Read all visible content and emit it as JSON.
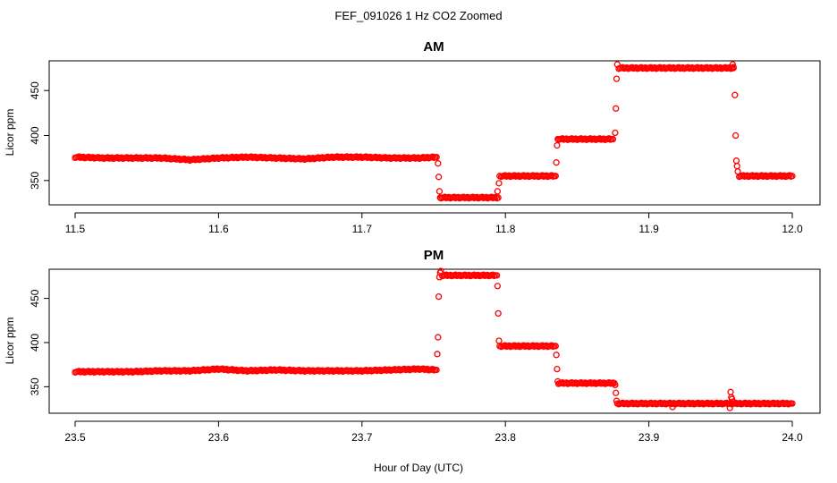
{
  "figure": {
    "title": "FEF_091026  1 Hz CO2 Zoomed",
    "xlabel": "Hour of Day (UTC)"
  },
  "chart_data": [
    {
      "type": "scatter",
      "title": "AM",
      "xlabel": "",
      "ylabel": "Licor ppm",
      "xlim": [
        11.5,
        12.0
      ],
      "ylim": [
        323,
        483
      ],
      "xticks": [
        "11.5",
        "11.6",
        "11.7",
        "11.8",
        "11.9",
        "12.0"
      ],
      "yticks": [
        "350",
        "400",
        "450"
      ],
      "marker": "open-circle",
      "color": "#ff0000",
      "segments": [
        {
          "x": [
            11.5,
            11.52,
            11.54,
            11.56,
            11.58,
            11.6,
            11.62,
            11.64,
            11.66,
            11.68,
            11.7,
            11.72,
            11.74,
            11.752
          ],
          "y": [
            376,
            375,
            375,
            375,
            373,
            375,
            376,
            375,
            374,
            376,
            376,
            375,
            375,
            376
          ]
        },
        {
          "x": [
            11.755,
            11.795
          ],
          "y": [
            331,
            331
          ]
        },
        {
          "x": [
            11.797,
            11.835
          ],
          "y": [
            355,
            355
          ]
        },
        {
          "x": [
            11.837,
            11.875
          ],
          "y": [
            396,
            396
          ]
        },
        {
          "x": [
            11.879,
            11.959
          ],
          "y": [
            475,
            475
          ]
        },
        {
          "x": [
            11.963,
            12.0
          ],
          "y": [
            355,
            355
          ]
        }
      ],
      "transitions": [
        {
          "x": [
            11.753,
            11.7535,
            11.754,
            11.7545
          ],
          "y": [
            369,
            354,
            338,
            331
          ]
        },
        {
          "x": [
            11.7945,
            11.7955,
            11.796
          ],
          "y": [
            338,
            347,
            355
          ]
        },
        {
          "x": [
            11.8355,
            11.836,
            11.8365
          ],
          "y": [
            370,
            389,
            396
          ]
        },
        {
          "x": [
            11.8765,
            11.877,
            11.8775,
            11.878
          ],
          "y": [
            403,
            430,
            463,
            479
          ]
        },
        {
          "x": [
            11.9585,
            11.959,
            11.96,
            11.9605,
            11.961,
            11.9615,
            11.962
          ],
          "y": [
            479,
            476,
            445,
            400,
            372,
            366,
            360
          ]
        }
      ]
    },
    {
      "type": "scatter",
      "title": "PM",
      "xlabel": "Hour of Day (UTC)",
      "ylabel": "Licor ppm",
      "xlim": [
        23.5,
        24.0
      ],
      "ylim": [
        320,
        483
      ],
      "xticks": [
        "23.5",
        "23.6",
        "23.7",
        "23.8",
        "23.9",
        "24.0"
      ],
      "yticks": [
        "350",
        "400",
        "450"
      ],
      "marker": "open-circle",
      "color": "#ff0000",
      "segments": [
        {
          "x": [
            23.5,
            23.52,
            23.54,
            23.56,
            23.58,
            23.6,
            23.62,
            23.64,
            23.66,
            23.68,
            23.7,
            23.72,
            23.74,
            23.752
          ],
          "y": [
            367,
            367,
            367,
            368,
            368,
            370,
            368,
            369,
            368,
            368,
            368,
            369,
            370,
            369
          ]
        },
        {
          "x": [
            23.756,
            23.794
          ],
          "y": [
            476,
            476
          ]
        },
        {
          "x": [
            23.797,
            23.835
          ],
          "y": [
            396,
            396
          ]
        },
        {
          "x": [
            23.837,
            23.876
          ],
          "y": [
            354,
            354
          ]
        },
        {
          "x": [
            23.879,
            24.0
          ],
          "y": [
            331,
            331
          ]
        }
      ],
      "transitions": [
        {
          "x": [
            23.7525,
            23.753,
            23.7535,
            23.754,
            23.7545,
            23.755
          ],
          "y": [
            387,
            406,
            452,
            474,
            479,
            481
          ]
        },
        {
          "x": [
            23.7945,
            23.795,
            23.7955,
            23.796
          ],
          "y": [
            464,
            433,
            402,
            396
          ]
        },
        {
          "x": [
            23.8355,
            23.836,
            23.8365
          ],
          "y": [
            386,
            370,
            356
          ]
        },
        {
          "x": [
            23.8765,
            23.877,
            23.8775,
            23.878
          ],
          "y": [
            352,
            343,
            334,
            331
          ]
        },
        {
          "x": [
            23.9165,
            23.9565,
            23.957,
            23.9575,
            23.958,
            23.9585
          ],
          "y": [
            327,
            326,
            344,
            338,
            336,
            333
          ]
        }
      ]
    }
  ]
}
